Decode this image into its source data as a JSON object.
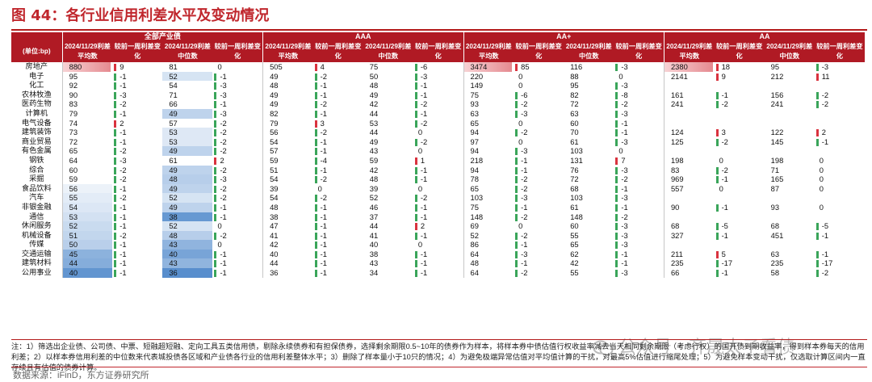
{
  "title": "图 44：各行业信用利差水平及变动情况",
  "group_headers": [
    "全部产业债",
    "AAA",
    "AA+",
    "AA"
  ],
  "unit_label": "(单位:bp)",
  "column_headers": [
    "2024/11/29利差平均数",
    "较前一周利差变化",
    "2024/11/29利差中位数",
    "较前一周利差变化"
  ],
  "colors": {
    "header_bg": "#b01a24",
    "title": "#c0272d",
    "pos_change": "#d9333f",
    "neg_change": "#3aa55a",
    "blue_scale": "#5b8fd0",
    "red_scale": "#e58a90"
  },
  "rows": [
    {
      "industry": "房地产",
      "v": [
        "880",
        "9",
        "81",
        "0",
        "505",
        "4",
        "75",
        "-6",
        "3474",
        "85",
        "116",
        "-3",
        "2380",
        "18",
        "95",
        "-3"
      ]
    },
    {
      "industry": "电子",
      "v": [
        "95",
        "-1",
        "52",
        "-1",
        "49",
        "-2",
        "50",
        "-3",
        "220",
        "0",
        "88",
        "0",
        "2141",
        "9",
        "212",
        "11"
      ]
    },
    {
      "industry": "化工",
      "v": [
        "92",
        "-1",
        "54",
        "-3",
        "48",
        "-1",
        "48",
        "-1",
        "149",
        "0",
        "95",
        "-3",
        "",
        "",
        "",
        ""
      ]
    },
    {
      "industry": "农林牧渔",
      "v": [
        "90",
        "-3",
        "71",
        "-3",
        "49",
        "-1",
        "49",
        "-1",
        "75",
        "-6",
        "82",
        "-8",
        "161",
        "-1",
        "156",
        "-2"
      ]
    },
    {
      "industry": "医药生物",
      "v": [
        "83",
        "-2",
        "66",
        "-1",
        "49",
        "-2",
        "42",
        "-2",
        "93",
        "-2",
        "72",
        "-2",
        "241",
        "-2",
        "241",
        "-2"
      ]
    },
    {
      "industry": "计算机",
      "v": [
        "79",
        "-1",
        "49",
        "-3",
        "82",
        "-1",
        "44",
        "-1",
        "63",
        "-3",
        "63",
        "-3",
        "",
        "",
        "",
        ""
      ]
    },
    {
      "industry": "电气设备",
      "v": [
        "74",
        "2",
        "57",
        "-2",
        "79",
        "3",
        "53",
        "-2",
        "65",
        "0",
        "60",
        "-1",
        "",
        "",
        "",
        ""
      ]
    },
    {
      "industry": "建筑装饰",
      "v": [
        "73",
        "-1",
        "53",
        "-2",
        "56",
        "-2",
        "44",
        "0",
        "94",
        "-2",
        "70",
        "-1",
        "124",
        "3",
        "122",
        "2"
      ]
    },
    {
      "industry": "商业贸易",
      "v": [
        "72",
        "-1",
        "53",
        "-2",
        "54",
        "-1",
        "49",
        "-2",
        "97",
        "0",
        "61",
        "-3",
        "125",
        "-2",
        "145",
        "-1"
      ]
    },
    {
      "industry": "有色金属",
      "v": [
        "65",
        "-2",
        "49",
        "-2",
        "57",
        "-1",
        "43",
        "0",
        "94",
        "-3",
        "103",
        "0",
        "",
        "",
        "",
        ""
      ]
    },
    {
      "industry": "钢铁",
      "v": [
        "64",
        "-3",
        "61",
        "2",
        "59",
        "-4",
        "59",
        "1",
        "218",
        "-1",
        "131",
        "7",
        "198",
        "0",
        "198",
        "0"
      ]
    },
    {
      "industry": "综合",
      "v": [
        "60",
        "-2",
        "49",
        "-2",
        "51",
        "-1",
        "42",
        "-1",
        "94",
        "-1",
        "76",
        "-3",
        "83",
        "-2",
        "71",
        "0"
      ]
    },
    {
      "industry": "采掘",
      "v": [
        "59",
        "-2",
        "48",
        "-3",
        "54",
        "-2",
        "48",
        "-1",
        "78",
        "-2",
        "72",
        "-2",
        "969",
        "-1",
        "165",
        "0"
      ]
    },
    {
      "industry": "食品饮料",
      "v": [
        "56",
        "-1",
        "49",
        "-2",
        "39",
        "0",
        "39",
        "0",
        "65",
        "-2",
        "68",
        "-1",
        "557",
        "0",
        "87",
        "0"
      ]
    },
    {
      "industry": "汽车",
      "v": [
        "55",
        "-2",
        "52",
        "-2",
        "54",
        "-2",
        "52",
        "-2",
        "103",
        "-3",
        "103",
        "-3",
        "",
        "",
        "",
        ""
      ]
    },
    {
      "industry": "非银金融",
      "v": [
        "54",
        "-1",
        "49",
        "-1",
        "48",
        "-1",
        "46",
        "-1",
        "75",
        "-1",
        "61",
        "-1",
        "90",
        "-1",
        "93",
        "0"
      ]
    },
    {
      "industry": "通信",
      "v": [
        "53",
        "-1",
        "38",
        "-1",
        "38",
        "-1",
        "37",
        "-1",
        "148",
        "-2",
        "148",
        "-2",
        "",
        "",
        "",
        ""
      ]
    },
    {
      "industry": "休闲服务",
      "v": [
        "52",
        "-1",
        "52",
        "0",
        "47",
        "-1",
        "44",
        "2",
        "69",
        "0",
        "60",
        "-3",
        "68",
        "-5",
        "68",
        "-5"
      ]
    },
    {
      "industry": "机械设备",
      "v": [
        "51",
        "-2",
        "48",
        "-2",
        "41",
        "-1",
        "41",
        "-1",
        "52",
        "-2",
        "55",
        "-3",
        "327",
        "-1",
        "451",
        "-1"
      ]
    },
    {
      "industry": "传媒",
      "v": [
        "50",
        "-1",
        "43",
        "0",
        "42",
        "-1",
        "40",
        "0",
        "86",
        "-1",
        "65",
        "-3",
        "",
        "",
        "",
        ""
      ]
    },
    {
      "industry": "交通运输",
      "v": [
        "45",
        "-1",
        "40",
        "-1",
        "40",
        "-1",
        "38",
        "-1",
        "64",
        "-3",
        "62",
        "-1",
        "211",
        "5",
        "63",
        "-1"
      ]
    },
    {
      "industry": "建筑材料",
      "v": [
        "44",
        "-1",
        "43",
        "-1",
        "44",
        "-1",
        "43",
        "-1",
        "48",
        "-1",
        "42",
        "-1",
        "235",
        "-17",
        "235",
        "-17"
      ]
    },
    {
      "industry": "公用事业",
      "v": [
        "40",
        "-1",
        "36",
        "-1",
        "36",
        "-1",
        "34",
        "-1",
        "64",
        "-2",
        "55",
        "-3",
        "66",
        "-1",
        "58",
        "-2"
      ]
    }
  ],
  "notes": "注：1）筛选出企业债、公司债、中票、短融超短融、定向工具五类信用债，剔除永续债券和有担保债券，选择剩余期限0.5~10年的债券作为样本，将样本券中债估值行权收益率减去当天相同剩余期限（考虑行权）的国开债到期收益率，得到样本券每天的信用利差；2）以样本券信用利差的中位数来代表城投债各区域和产业债各行业的信用利差整体水平；3）删除了样本量小于10只的情况；4）为避免极端异常估值对平均值计算的干扰，对最高5%估值进行缩尾处理；5）为避免样本变动干扰，仅选取计算区间内一直存续且有估值的债券计算。",
  "source": "数据来源：iFinD，东方证券研究所",
  "watermark": "公众号 · 齐晟太子看债"
}
